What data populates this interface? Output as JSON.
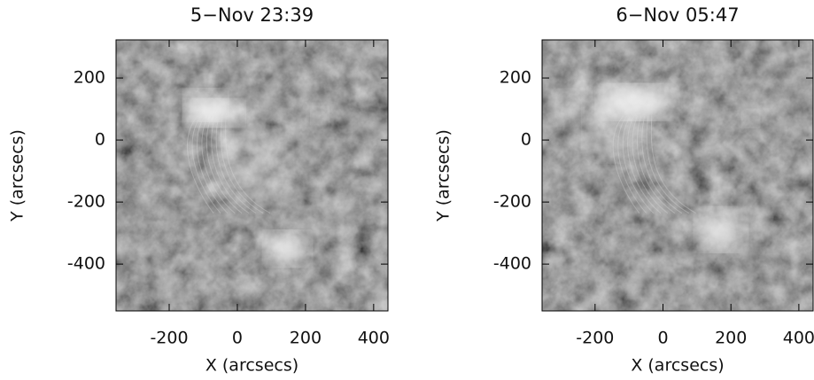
{
  "chart_data": [
    {
      "type": "image",
      "title": "5−Nov 23:39",
      "xlabel": "X (arcsecs)",
      "ylabel": "Y (arcsecs)",
      "xlim": [
        -356,
        442
      ],
      "ylim": [
        -551,
        323
      ],
      "xticks": [
        -200,
        0,
        200,
        400
      ],
      "yticks": [
        -400,
        -200,
        0,
        200
      ]
    },
    {
      "type": "image",
      "title": "6−Nov 05:47",
      "xlabel": "X (arcsecs)",
      "ylabel": "Y (arcsecs)",
      "xlim": [
        -356,
        442
      ],
      "ylim": [
        -551,
        323
      ],
      "xticks": [
        -200,
        0,
        200,
        400
      ],
      "yticks": [
        -400,
        -200,
        0,
        200
      ]
    }
  ]
}
